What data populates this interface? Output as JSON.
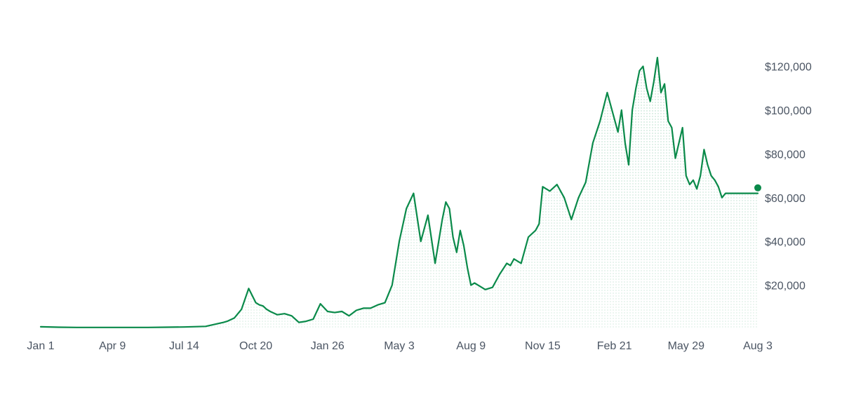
{
  "colors": {
    "line": "#0a8a4a",
    "dots": "#0a8a4a",
    "tick_text": "#4b5563",
    "background": "#ffffff"
  },
  "chart_data": {
    "type": "area",
    "title": "",
    "xlabel": "",
    "ylabel": "",
    "y_axis_position": "right",
    "grid": false,
    "legend": "none",
    "ylim": [
      0,
      125000
    ],
    "x_tick_labels": [
      "Jan 1",
      "Apr 9",
      "Jul 14",
      "Oct 20",
      "Jan 26",
      "May 3",
      "Aug 9",
      "Nov 15",
      "Feb 21",
      "May 29",
      "Aug 3"
    ],
    "y_ticks": [
      20000,
      40000,
      60000,
      80000,
      100000,
      120000
    ],
    "y_tick_labels": [
      "$20,000",
      "$40,000",
      "$60,000",
      "$80,000",
      "$100,000",
      "$120,000"
    ],
    "series": [
      {
        "x_index": [
          0,
          0.25,
          0.5,
          0.75,
          1,
          1.25,
          1.5,
          1.75,
          2,
          2.3,
          2.55,
          2.6,
          2.7,
          2.8,
          2.9,
          3.0,
          3.05,
          3.1,
          3.15,
          3.2,
          3.3,
          3.4,
          3.5,
          3.6,
          3.7,
          3.8,
          3.9,
          4.0,
          4.1,
          4.2,
          4.3,
          4.4,
          4.5,
          4.6,
          4.7,
          4.8,
          4.9,
          5.0,
          5.1,
          5.2,
          5.3,
          5.4,
          5.5,
          5.6,
          5.65,
          5.7,
          5.75,
          5.8,
          5.85,
          5.9,
          5.95,
          6.0,
          6.05,
          6.1,
          6.15,
          6.2,
          6.3,
          6.4,
          6.5,
          6.55,
          6.6,
          6.7,
          6.8,
          6.9,
          6.95,
          7.0,
          7.1,
          7.2,
          7.3,
          7.4,
          7.5,
          7.6,
          7.7,
          7.8,
          7.9,
          8.0,
          8.05,
          8.1,
          8.15,
          8.2,
          8.25,
          8.3,
          8.35,
          8.4,
          8.45,
          8.5,
          8.55,
          8.6,
          8.65,
          8.7,
          8.75,
          8.8,
          8.85,
          8.9,
          8.95,
          9.0,
          9.05,
          9.1,
          9.15,
          9.2,
          9.25,
          9.3,
          9.35,
          9.4,
          9.45,
          9.5,
          9.55,
          9.6,
          9.65,
          9.7,
          9.75,
          9.8,
          9.85,
          9.9,
          9.95,
          10.0
        ],
        "values": [
          1000,
          800,
          700,
          700,
          700,
          700,
          700,
          800,
          900,
          1200,
          3000,
          3500,
          5000,
          9000,
          18500,
          12000,
          11000,
          10500,
          9000,
          8000,
          6500,
          7000,
          6000,
          3000,
          3500,
          4500,
          11500,
          8000,
          7500,
          8000,
          6000,
          8500,
          9500,
          9500,
          11000,
          12000,
          20000,
          40000,
          55000,
          62000,
          40000,
          52000,
          30000,
          50000,
          58000,
          55000,
          42000,
          35000,
          45000,
          38000,
          28000,
          20000,
          21000,
          20000,
          19000,
          18000,
          19000,
          25000,
          30000,
          29000,
          32000,
          30000,
          42000,
          45000,
          48000,
          65000,
          63000,
          66000,
          60000,
          50000,
          60000,
          67000,
          85000,
          95000,
          108000,
          96000,
          90000,
          100000,
          85000,
          75000,
          100000,
          110000,
          118000,
          120000,
          110000,
          104000,
          113000,
          124000,
          108000,
          112000,
          95000,
          92000,
          78000,
          85000,
          92000,
          70000,
          66000,
          68000,
          64000,
          70000,
          82000,
          75000,
          70000,
          68000,
          65000,
          60000,
          62000,
          62000,
          62000,
          62000,
          62000,
          62000,
          62000,
          62000,
          62000,
          62000
        ],
        "last_value": 62500
      }
    ]
  }
}
